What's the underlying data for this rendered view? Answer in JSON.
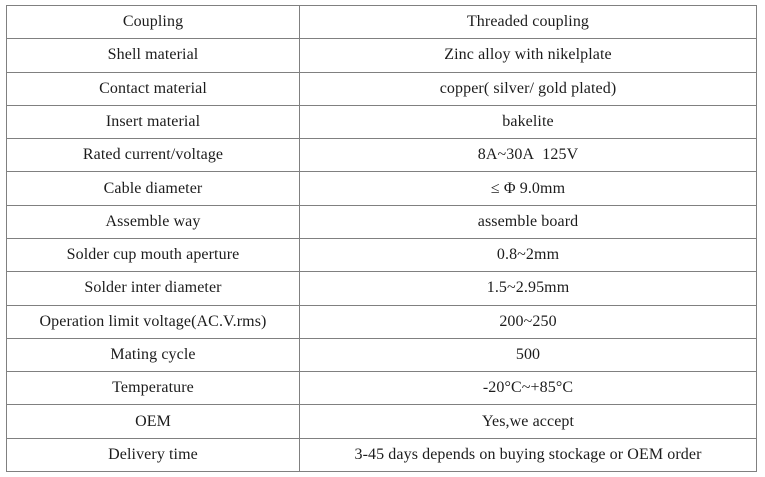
{
  "colors": {
    "border": "#808080",
    "text": "#1c1c1c",
    "background": "#ffffff"
  },
  "table": {
    "name": "product-specification-table",
    "columns": [
      "attribute",
      "value"
    ],
    "rows": [
      {
        "label": "Coupling",
        "value": "Threaded coupling"
      },
      {
        "label": "Shell material",
        "value": "Zinc alloy with nikelplate"
      },
      {
        "label": "Contact material",
        "value": "copper( silver/ gold plated)"
      },
      {
        "label": "Insert material",
        "value": "bakelite"
      },
      {
        "label": "Rated current/voltage",
        "value": "8A~30A  125V"
      },
      {
        "label": "Cable diameter",
        "value": "≤ Φ 9.0mm"
      },
      {
        "label": "Assemble way",
        "value": "assemble board"
      },
      {
        "label": "Solder cup mouth aperture",
        "value": "0.8~2mm"
      },
      {
        "label": "Solder inter diameter",
        "value": "1.5~2.95mm"
      },
      {
        "label": "Operation limit voltage(AC.V.rms)",
        "value": "200~250"
      },
      {
        "label": "Mating cycle",
        "value": "500"
      },
      {
        "label": "Temperature",
        "value": "-20°C~+85°C"
      },
      {
        "label": "OEM",
        "value": "Yes,we accept"
      },
      {
        "label": "Delivery time",
        "value": "3-45 days depends on buying stockage or OEM order"
      }
    ]
  }
}
